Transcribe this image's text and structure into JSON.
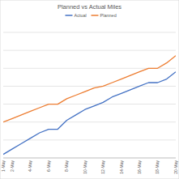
{
  "chart_data": {
    "type": "line",
    "title": "Planned vs Actual Miles",
    "categories": [
      "1-May",
      "2-May",
      null,
      "4-May",
      null,
      "6-May",
      null,
      "8-May",
      null,
      "10-May",
      null,
      "12-May",
      null,
      "14-May",
      null,
      "16-May",
      null,
      "18-May",
      null,
      "20-May"
    ],
    "series": [
      {
        "name": "Actual",
        "color": "#4472c4",
        "values": [
          2,
          5,
          8,
          11,
          14,
          16,
          16,
          21,
          24,
          27,
          29,
          31,
          34,
          36,
          38,
          40,
          42,
          42,
          44,
          48
        ]
      },
      {
        "name": "Planned",
        "color": "#ed7d31",
        "values": [
          20,
          22,
          24,
          26,
          28,
          30,
          30,
          33,
          35,
          37,
          39,
          40,
          42,
          44,
          46,
          48,
          50,
          50,
          53,
          57
        ]
      }
    ],
    "ylim": [
      0,
      70
    ],
    "yticks": [
      0,
      10,
      20,
      30,
      40,
      50,
      60,
      70
    ],
    "grid": true,
    "legend": "top",
    "tick_labels": "x"
  }
}
